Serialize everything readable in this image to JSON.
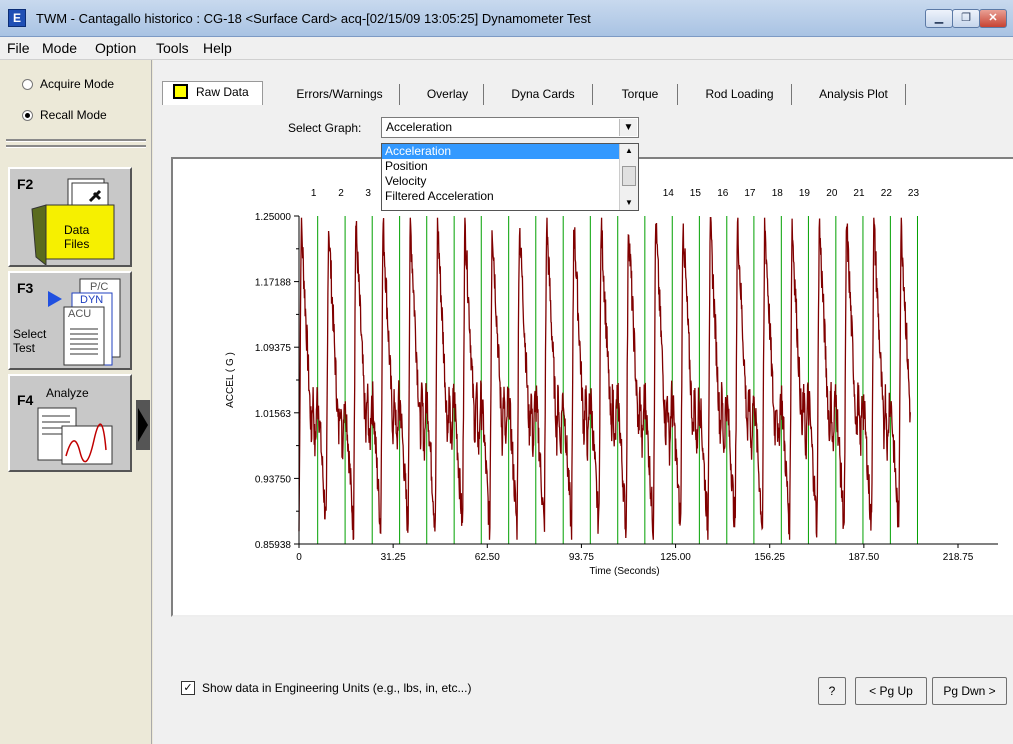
{
  "window": {
    "title": "TWM - Cantagallo historico : CG-18 <Surface Card> acq-[02/15/09 13:05:25] Dynamometer Test",
    "app_icon_letter": "E"
  },
  "menu": [
    "File",
    "Mode",
    "Option",
    "Tools",
    "Help"
  ],
  "mode": {
    "acquire_label": "Acquire Mode",
    "recall_label": "Recall Mode",
    "selected": "recall"
  },
  "function_buttons": {
    "f2": {
      "key": "F2",
      "label_line1": "Data",
      "label_line2": "Files"
    },
    "f3": {
      "key": "F3",
      "label_line1": "Select",
      "label_line2": "Test",
      "doc_labels": [
        "P/C",
        "DYN",
        "ACU"
      ]
    },
    "f4": {
      "key": "F4",
      "label": "Analyze"
    }
  },
  "tabs": [
    "Raw Data",
    "Errors/Warnings",
    "Overlay",
    "Dyna Cards",
    "Torque",
    "Rod Loading",
    "Analysis Plot"
  ],
  "active_tab": "Raw Data",
  "graph_select": {
    "label": "Select Graph:",
    "value": "Acceleration",
    "options": [
      "Acceleration",
      "Position",
      "Velocity",
      "Filtered Acceleration"
    ]
  },
  "chart_data": {
    "type": "line",
    "xlabel": "Time (Seconds)",
    "ylabel": "ACCEL ( G )",
    "x_ticks": [
      "0",
      "31.25",
      "62.50",
      "93.75",
      "125.00",
      "156.25",
      "187.50",
      "218.75"
    ],
    "y_ticks": [
      "0.85938",
      "0.93750",
      "1.01563",
      "1.09375",
      "1.17188",
      "1.25000"
    ],
    "xlim": [
      0,
      218.75
    ],
    "ylim": [
      0.85938,
      1.25
    ],
    "stroke_numbers": [
      "1",
      "2",
      "3",
      "14",
      "15",
      "16",
      "17",
      "18",
      "19",
      "20",
      "21",
      "22",
      "23"
    ],
    "stroke_marker_times": [
      6.2,
      15.3,
      24.3,
      33.4,
      42.4,
      51.5,
      60.5,
      69.6,
      78.6,
      87.7,
      96.7,
      105.8,
      114.8,
      123.9,
      132.9,
      142.0,
      151.0,
      160.1,
      169.1,
      178.2,
      187.2,
      196.3,
      205.3
    ],
    "series": [
      {
        "name": "",
        "color": "#800000",
        "period": 9.05,
        "t_start": 0,
        "t_end": 203,
        "peak": 1.245,
        "trough": 0.875,
        "mid": 1.035
      }
    ],
    "marker_color": "#00a000",
    "grid": false
  },
  "footer": {
    "checkbox_label": "Show data in Engineering Units (e.g., lbs, in, etc...)",
    "checkbox_checked": true,
    "help_label": "?",
    "pgup_label": "< Pg Up",
    "pgdn_label": "Pg Dwn >"
  }
}
